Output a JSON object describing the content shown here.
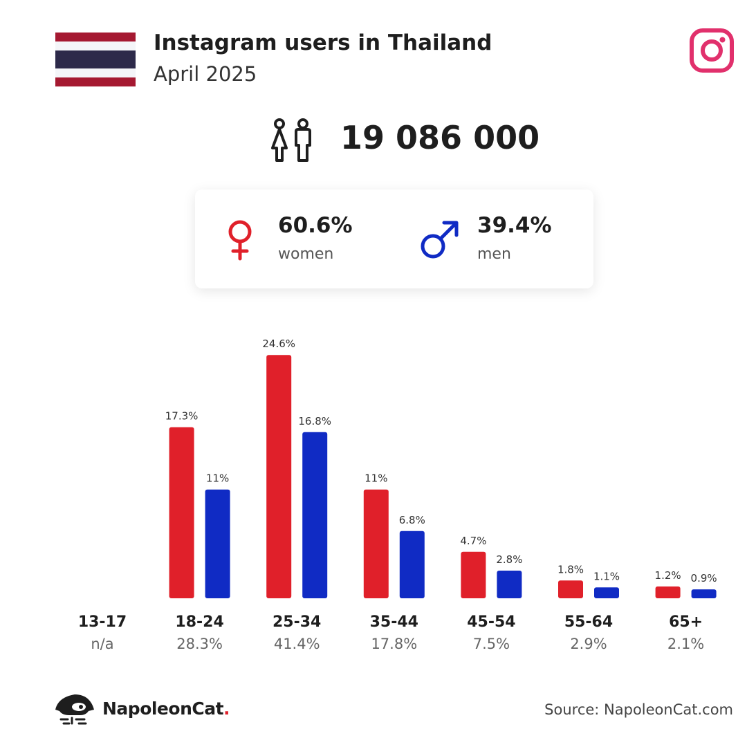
{
  "header": {
    "title": "Instagram users in Thailand",
    "subtitle": "April 2025",
    "flag_icon": "thailand-flag-icon",
    "brand_icon": "instagram-icon"
  },
  "total": {
    "icon": "people-icon",
    "value": "19 086 000"
  },
  "gender": {
    "women": {
      "value": "60.6%",
      "label": "women",
      "icon": "female-icon",
      "color": "#e0202a"
    },
    "men": {
      "value": "39.4%",
      "label": "men",
      "icon": "male-icon",
      "color": "#102bc4"
    }
  },
  "chart_data": {
    "type": "bar",
    "categories": [
      "13-17",
      "18-24",
      "25-34",
      "35-44",
      "45-54",
      "55-64",
      "65+"
    ],
    "category_totals": [
      "n/a",
      "28.3%",
      "41.4%",
      "17.8%",
      "7.5%",
      "2.9%",
      "2.1%"
    ],
    "series": [
      {
        "name": "women",
        "color": "#e0202a",
        "values": [
          null,
          17.3,
          24.6,
          11,
          4.7,
          1.8,
          1.2
        ],
        "labels": [
          "",
          "17.3%",
          "24.6%",
          "11%",
          "4.7%",
          "1.8%",
          "1.2%"
        ]
      },
      {
        "name": "men",
        "color": "#102bc4",
        "values": [
          null,
          11,
          16.8,
          6.8,
          2.8,
          1.1,
          0.9
        ],
        "labels": [
          "",
          "11%",
          "16.8%",
          "6.8%",
          "2.8%",
          "1.1%",
          "0.9%"
        ]
      }
    ],
    "grid": false
  },
  "footer": {
    "brand_name": "NapoleonCat",
    "brand_dot": ".",
    "brand_icon": "napoleoncat-logo-icon",
    "source": "Source: NapoleonCat.com"
  }
}
